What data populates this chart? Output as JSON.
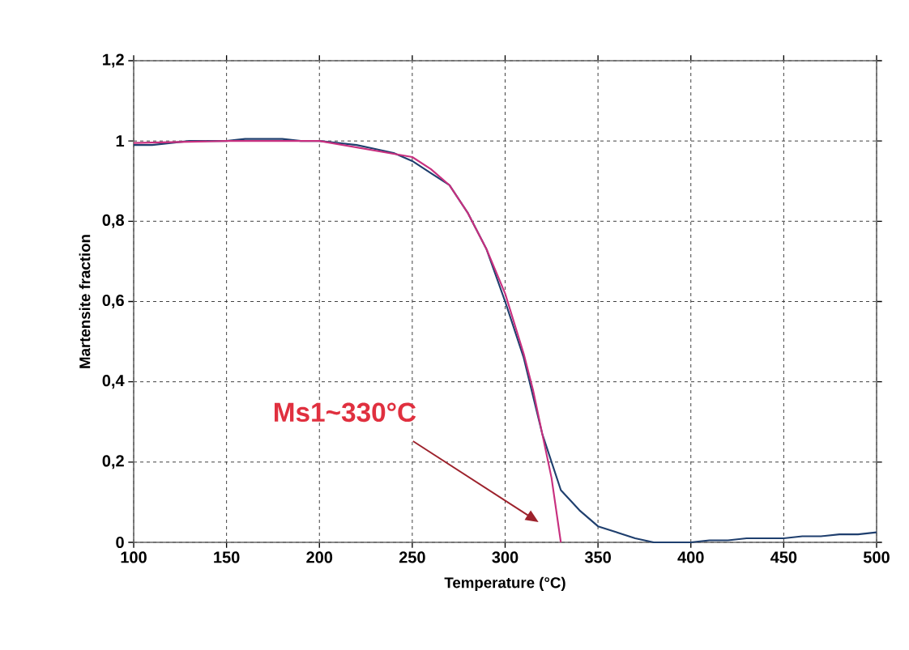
{
  "chart_data": {
    "type": "line",
    "xlabel": "Temperature (°C)",
    "ylabel": "Martensite fraction",
    "xlim": [
      100,
      500
    ],
    "xticks": [
      100,
      150,
      200,
      250,
      300,
      350,
      400,
      450,
      500
    ],
    "ylim": [
      0,
      1.2
    ],
    "yticks": [
      0,
      {
        "value": 0.2,
        "label": "0,2"
      },
      {
        "value": 0.4,
        "label": "0,4"
      },
      {
        "value": 0.6,
        "label": "0,6"
      },
      {
        "value": 0.8,
        "label": "0,8"
      },
      1,
      {
        "value": 1.2,
        "label": "1,2"
      }
    ],
    "grid": true,
    "marker": "none",
    "line_style": "solid",
    "annotations": [
      "Ms1~330°C"
    ],
    "series": [
      {
        "color": "#1f3f6e",
        "x": [
          100,
          110,
          120,
          130,
          140,
          150,
          160,
          170,
          180,
          190,
          200,
          210,
          220,
          230,
          240,
          250,
          260,
          270,
          280,
          290,
          300,
          310,
          320,
          330,
          340,
          350,
          360,
          370,
          380,
          390,
          400,
          410,
          420,
          430,
          440,
          450,
          460,
          470,
          480,
          490,
          500
        ],
        "values": [
          0.99,
          0.99,
          0.995,
          1.0,
          1.0,
          1.0,
          1.005,
          1.005,
          1.005,
          1.0,
          1.0,
          0.995,
          0.99,
          0.98,
          0.97,
          0.95,
          0.92,
          0.89,
          0.82,
          0.73,
          0.6,
          0.46,
          0.27,
          0.13,
          0.08,
          0.04,
          0.025,
          0.01,
          0,
          0,
          0,
          0.005,
          0.005,
          0.01,
          0.01,
          0.01,
          0.015,
          0.015,
          0.02,
          0.02,
          0.025
        ]
      },
      {
        "color": "#c8307f",
        "x": [
          100,
          150,
          200,
          250,
          260,
          270,
          280,
          290,
          300,
          310,
          315,
          320,
          325,
          330
        ],
        "values": [
          0.995,
          1.0,
          1.0,
          0.96,
          0.93,
          0.89,
          0.82,
          0.73,
          0.62,
          0.47,
          0.38,
          0.27,
          0.16,
          0
        ]
      }
    ]
  }
}
